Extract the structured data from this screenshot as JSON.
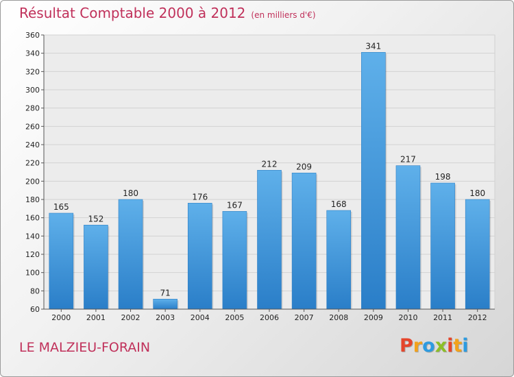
{
  "header": {
    "title": "Résultat Comptable 2000 à 2012",
    "subtitle": "(en milliers d'€)"
  },
  "footer": {
    "commune": "LE MALZIEU-FORAIN",
    "logo_letters": [
      "P",
      "r",
      "o",
      "x",
      "i",
      "t",
      "i"
    ],
    "logo_colors": [
      "#e5452b",
      "#f2a21c",
      "#2d9be0",
      "#8cbf26",
      "#e5452b",
      "#f2a21c",
      "#2d9be0"
    ]
  },
  "chart_data": {
    "type": "bar",
    "categories": [
      "2000",
      "2001",
      "2002",
      "2003",
      "2004",
      "2005",
      "2006",
      "2007",
      "2008",
      "2009",
      "2010",
      "2011",
      "2012"
    ],
    "values": [
      165,
      152,
      180,
      71,
      176,
      167,
      212,
      209,
      168,
      341,
      217,
      198,
      180
    ],
    "title": "Résultat Comptable 2000 à 2012",
    "subtitle": "(en milliers d'€)",
    "xlabel": "",
    "ylabel": "",
    "ylim": [
      60,
      360
    ],
    "yticks": [
      60,
      80,
      100,
      120,
      140,
      160,
      180,
      200,
      220,
      240,
      260,
      280,
      300,
      320,
      340,
      360
    ],
    "grid": true,
    "bar_color": "#4a9fe0"
  }
}
